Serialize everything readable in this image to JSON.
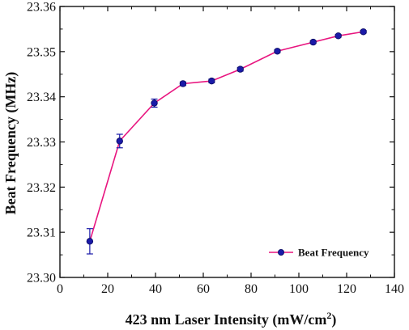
{
  "chart_data": {
    "type": "line",
    "title": "",
    "xlabel": "423 nm Laser Intensity (mW/cm",
    "xlabel_superscript": "2",
    "xlabel_suffix": ")",
    "ylabel": "Beat Frequency (MHz)",
    "xlim": [
      0,
      140
    ],
    "ylim": [
      23.3,
      23.36
    ],
    "xticks": [
      0,
      20,
      40,
      60,
      80,
      100,
      120,
      140
    ],
    "yticks": [
      23.3,
      23.31,
      23.32,
      23.33,
      23.34,
      23.35,
      23.36
    ],
    "ytick_labels": [
      "23.30",
      "23.31",
      "23.32",
      "23.33",
      "23.34",
      "23.35",
      "23.36"
    ],
    "grid": false,
    "legend_position": "bottom-right",
    "series": [
      {
        "name": "Beat Frequency",
        "line_color": "#e8157f",
        "marker_color": "#1a1aa8",
        "x": [
          12.5,
          25.0,
          39.5,
          51.5,
          63.5,
          75.5,
          91.0,
          106.0,
          116.5,
          127.0
        ],
        "y": [
          23.308,
          23.3302,
          23.3386,
          23.3429,
          23.3435,
          23.3461,
          23.3501,
          23.3521,
          23.3535,
          23.3544
        ],
        "yerr": [
          0.0028,
          0.0015,
          0.0009,
          0.0004,
          0.0004,
          0.0004,
          0.0003,
          0.0003,
          0.0003,
          0.0003
        ]
      }
    ]
  }
}
